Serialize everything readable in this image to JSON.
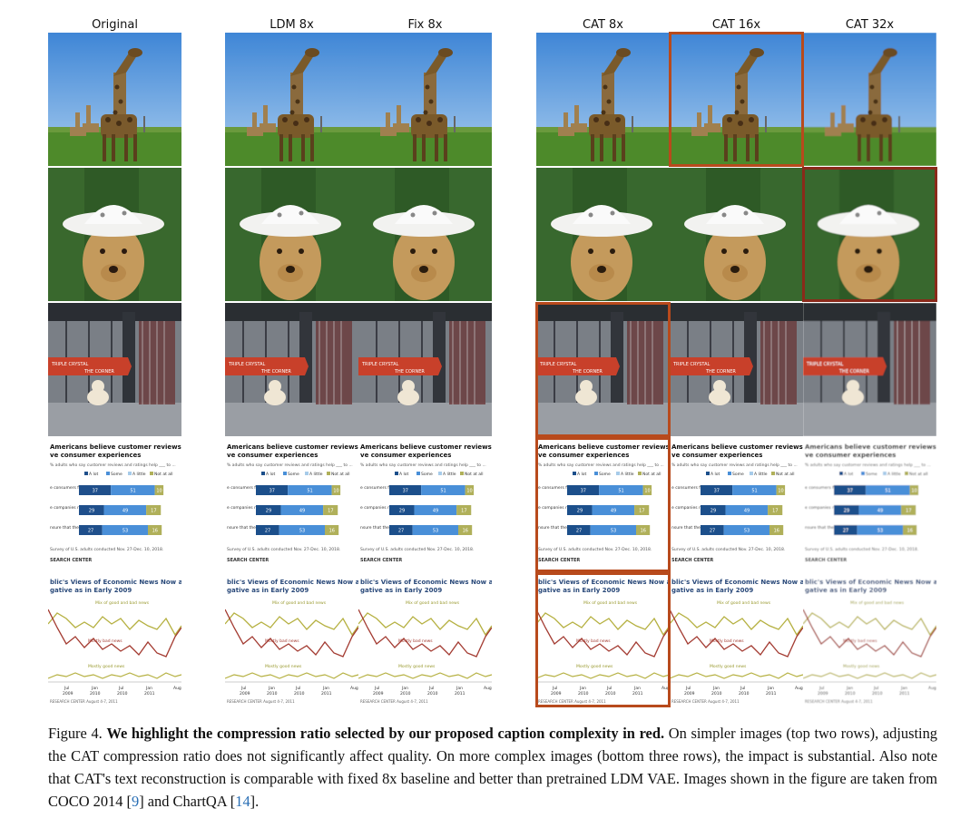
{
  "columns": [
    "Original",
    "LDM 8x",
    "Fix 8x",
    "CAT 8x",
    "CAT 16x",
    "CAT 32x"
  ],
  "rows": [
    "giraffes",
    "dog-with-hat",
    "storefront-teddy",
    "bar-chart",
    "line-chart"
  ],
  "highlight_color": "#b84a1c",
  "chart_texts": {
    "bar_title": "Americans believe customer reviews and ratings",
    "bar_subtitle": "ve consumer experiences",
    "bar_note": "% adults who say customer reviews and ratings help ___ to ...",
    "bar_legend": [
      "A lot",
      "Some",
      "A little",
      "Not at all"
    ],
    "bar_rows": [
      {
        "label": "e consumers fident about they are buying",
        "values": [
          "37",
          "51",
          "10"
        ]
      },
      {
        "label": "e companies ntable to their customers",
        "values": [
          "29",
          "49",
          "17"
        ]
      },
      {
        "label": "nsure that the ucts, services e buy are safe",
        "values": [
          "27",
          "53",
          "16"
        ]
      }
    ],
    "bar_footer": "Survey of U.S. adults conducted Nov. 27-Dec. 10, 2018.",
    "bar_source": "SEARCH CENTER",
    "line_title": "blic's Views of Economic News Now as",
    "line_subtitle": "gative as in Early 2009",
    "line_series": [
      "Mix of good and bad news",
      "Mostly bad news",
      "Mostly good news"
    ],
    "line_ticks": [
      "Jul 2009",
      "Jan 2010",
      "Jul 2010",
      "Jan 2011",
      "Aug"
    ],
    "line_source": "RESEARCH CENTER August 4-7, 2011"
  },
  "caption": {
    "figure_label": "Figure 4.",
    "bold": "We highlight the compression ratio selected by our proposed caption complexity in red.",
    "text": "On simpler images (top two rows), adjusting the CAT compression ratio does not significantly affect quality. On more complex images (bottom three rows), the impact is substantial. Also note that CAT's text reconstruction is comparable with fixed 8x baseline and better than pretrained LDM VAE. Images shown in the figure are taken from COCO 2014 [",
    "ref1": "9",
    "mid": "] and ChartQA [",
    "ref2": "14",
    "end": "]."
  }
}
